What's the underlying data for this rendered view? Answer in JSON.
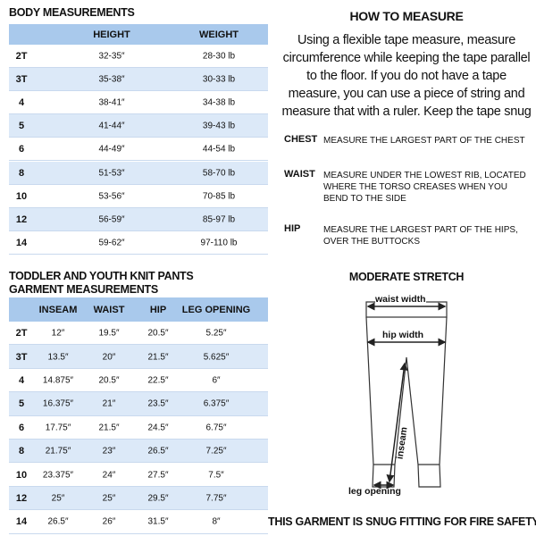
{
  "body_measurements": {
    "title": "BODY MEASUREMENTS",
    "columns": [
      "HEIGHT",
      "WEIGHT"
    ],
    "rows": [
      [
        "2T",
        "32-35″",
        "28-30 lb"
      ],
      [
        "3T",
        "35-38″",
        "30-33 lb"
      ],
      [
        "4",
        "38-41″",
        "34-38 lb"
      ],
      [
        "5",
        "41-44″",
        "39-43 lb"
      ],
      [
        "6",
        "44-49″",
        "44-54 lb"
      ],
      [
        "8",
        "51-53″",
        "58-70 lb"
      ],
      [
        "10",
        "53-56″",
        "70-85 lb"
      ],
      [
        "12",
        "56-59″",
        "85-97 lb"
      ],
      [
        "14",
        "59-62″",
        "97-110 lb"
      ]
    ]
  },
  "garment_measurements": {
    "title_lines": [
      "TODDLER AND YOUTH KNIT PANTS",
      "GARMENT MEASUREMENTS"
    ],
    "columns": [
      "INSEAM",
      "WAIST",
      "HIP",
      "LEG OPENING"
    ],
    "rows": [
      [
        "2T",
        "12″",
        "19.5″",
        "20.5″",
        "5.25″"
      ],
      [
        "3T",
        "13.5″",
        "20″",
        "21.5″",
        "5.625″"
      ],
      [
        "4",
        "14.875″",
        "20.5″",
        "22.5″",
        "6″"
      ],
      [
        "5",
        "16.375″",
        "21″",
        "23.5″",
        "6.375″"
      ],
      [
        "6",
        "17.75″",
        "21.5″",
        "24.5″",
        "6.75″"
      ],
      [
        "8",
        "21.75″",
        "23″",
        "26.5″",
        "7.25″"
      ],
      [
        "10",
        "23.375″",
        "24″",
        "27.5″",
        "7.5″"
      ],
      [
        "12",
        "25″",
        "25″",
        "29.5″",
        "7.75″"
      ],
      [
        "14",
        "26.5″",
        "26″",
        "31.5″",
        "8″"
      ]
    ]
  },
  "how_to_measure": {
    "title": "HOW TO MEASURE",
    "lines": [
      "Using a flexible tape measure, measure",
      "circumference while keeping the tape parallel",
      "to the floor.  If you do not have a tape",
      "measure, you can use a piece of string and",
      "measure that with a ruler. Keep the tape snug"
    ],
    "definitions": [
      {
        "term": "CHEST",
        "text": "MEASURE THE LARGEST PART OF THE CHEST"
      },
      {
        "term": "WAIST",
        "text": "MEASURE UNDER THE LOWEST RIB, LOCATED WHERE THE TORSO CREASES WHEN YOU BEND TO THE SIDE"
      },
      {
        "term": "HIP",
        "text": "MEASURE THE LARGEST PART OF THE HIPS, OVER THE BUTTOCKS"
      }
    ]
  },
  "stretch": {
    "title": "MODERATE STRETCH",
    "labels": {
      "waist_width": "waist width",
      "hip_width": "hip width",
      "inseam": "inseam",
      "leg_opening": "leg opening"
    }
  },
  "footer": "THIS GARMENT IS SNUG FITTING FOR FIRE SAFETY"
}
